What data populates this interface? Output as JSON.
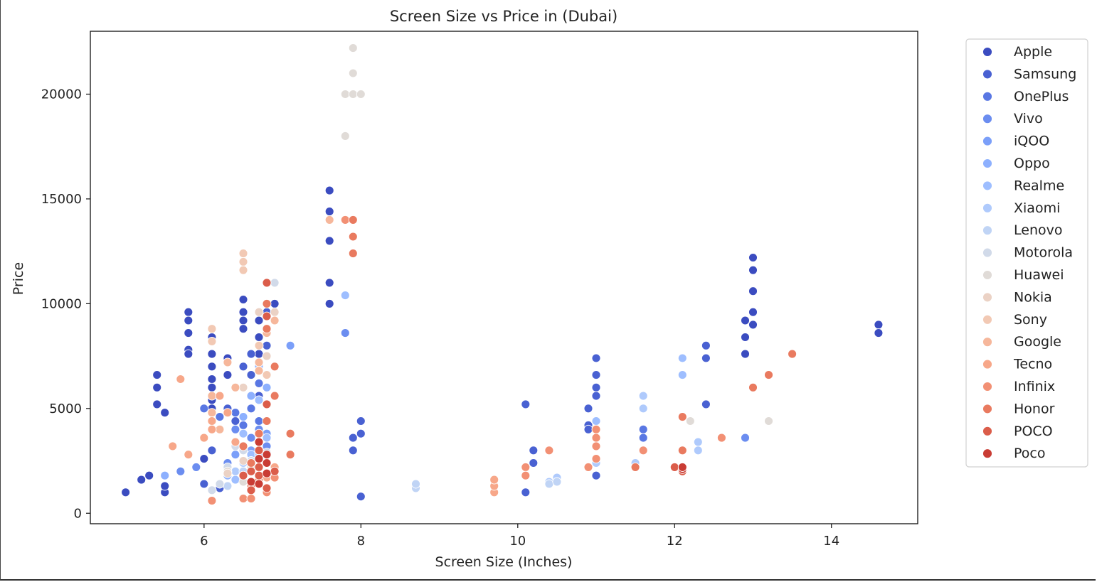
{
  "chart_data": {
    "type": "scatter",
    "title": "Screen Size vs Price in (Dubai)",
    "xlabel": "Screen Size (Inches)",
    "ylabel": "Price",
    "xlim": [
      4.55,
      15.1
    ],
    "ylim": [
      -500,
      23000
    ],
    "xticks": [
      6,
      8,
      10,
      12,
      14
    ],
    "yticks": [
      0,
      5000,
      10000,
      15000,
      20000
    ],
    "grid": false,
    "legend_position": "outside-right",
    "series": [
      {
        "name": "Apple",
        "color": "#3b4cc0",
        "points": [
          [
            5.0,
            1000
          ],
          [
            5.2,
            1600
          ],
          [
            5.3,
            1800
          ],
          [
            5.4,
            6600
          ],
          [
            5.4,
            6000
          ],
          [
            5.4,
            5200
          ],
          [
            5.5,
            4800
          ],
          [
            5.5,
            1000
          ],
          [
            5.5,
            1300
          ],
          [
            5.8,
            9600
          ],
          [
            5.8,
            9200
          ],
          [
            5.8,
            8600
          ],
          [
            5.8,
            7800
          ],
          [
            5.8,
            7600
          ],
          [
            6.0,
            2600
          ],
          [
            6.1,
            8400
          ],
          [
            6.1,
            7600
          ],
          [
            6.1,
            7000
          ],
          [
            6.1,
            6400
          ],
          [
            6.1,
            6000
          ],
          [
            6.1,
            5400
          ],
          [
            6.1,
            5000
          ],
          [
            6.3,
            7400
          ],
          [
            6.3,
            6600
          ],
          [
            6.5,
            10200
          ],
          [
            6.5,
            9600
          ],
          [
            6.5,
            9200
          ],
          [
            6.5,
            8800
          ],
          [
            6.7,
            9200
          ],
          [
            6.7,
            8400
          ],
          [
            6.7,
            7600
          ],
          [
            6.9,
            10000
          ],
          [
            7.6,
            15400
          ],
          [
            7.6,
            14400
          ],
          [
            7.6,
            13000
          ],
          [
            7.6,
            11000
          ],
          [
            7.6,
            10000
          ],
          [
            12.9,
            9200
          ],
          [
            12.9,
            8400
          ],
          [
            12.9,
            7600
          ],
          [
            13.0,
            12200
          ],
          [
            13.0,
            11600
          ],
          [
            13.0,
            10600
          ],
          [
            13.0,
            9600
          ],
          [
            13.0,
            9000
          ],
          [
            14.6,
            9000
          ],
          [
            14.6,
            8600
          ]
        ]
      },
      {
        "name": "Samsung",
        "color": "#4961d2",
        "points": [
          [
            6.0,
            1400
          ],
          [
            6.1,
            3000
          ],
          [
            6.2,
            1200
          ],
          [
            6.3,
            5000
          ],
          [
            6.4,
            4400
          ],
          [
            6.5,
            7000
          ],
          [
            6.6,
            7600
          ],
          [
            6.6,
            6600
          ],
          [
            6.7,
            6800
          ],
          [
            6.7,
            5600
          ],
          [
            6.8,
            9600
          ],
          [
            6.8,
            8000
          ],
          [
            6.9,
            7000
          ],
          [
            7.9,
            3600
          ],
          [
            7.9,
            3000
          ],
          [
            8.0,
            4400
          ],
          [
            8.0,
            3800
          ],
          [
            8.0,
            800
          ],
          [
            10.1,
            5200
          ],
          [
            10.1,
            1000
          ],
          [
            10.2,
            3000
          ],
          [
            10.2,
            2400
          ],
          [
            10.9,
            5000
          ],
          [
            10.9,
            4200
          ],
          [
            10.9,
            4000
          ],
          [
            11.0,
            7400
          ],
          [
            11.0,
            6600
          ],
          [
            11.0,
            6000
          ],
          [
            11.0,
            5600
          ],
          [
            11.0,
            1800
          ],
          [
            12.4,
            8000
          ],
          [
            12.4,
            7400
          ],
          [
            12.4,
            5200
          ]
        ]
      },
      {
        "name": "OnePlus",
        "color": "#5977e3",
        "points": [
          [
            6.0,
            5000
          ],
          [
            6.2,
            4600
          ],
          [
            6.4,
            4800
          ],
          [
            6.5,
            4200
          ],
          [
            6.6,
            5000
          ],
          [
            6.7,
            4400
          ],
          [
            6.7,
            6200
          ],
          [
            6.8,
            5200
          ],
          [
            11.6,
            4000
          ],
          [
            11.6,
            3600
          ]
        ]
      },
      {
        "name": "Vivo",
        "color": "#6b8df0",
        "points": [
          [
            5.7,
            2000
          ],
          [
            5.9,
            2200
          ],
          [
            6.3,
            2400
          ],
          [
            6.4,
            4000
          ],
          [
            6.6,
            3600
          ],
          [
            6.7,
            4000
          ],
          [
            6.8,
            3200
          ],
          [
            7.8,
            8600
          ],
          [
            12.9,
            3600
          ]
        ]
      },
      {
        "name": "iQOO",
        "color": "#7b9ff9",
        "points": [
          [
            6.4,
            2800
          ],
          [
            6.6,
            3000
          ],
          [
            6.7,
            2600
          ],
          [
            6.8,
            3800
          ],
          [
            7.1,
            8000
          ]
        ]
      },
      {
        "name": "Oppo",
        "color": "#8db0fe",
        "points": [
          [
            5.5,
            1800
          ],
          [
            6.3,
            1800
          ],
          [
            6.5,
            4600
          ],
          [
            6.6,
            5600
          ],
          [
            6.7,
            7000
          ],
          [
            6.8,
            6000
          ]
        ]
      },
      {
        "name": "Realme",
        "color": "#9ebeff",
        "points": [
          [
            6.4,
            1600
          ],
          [
            6.5,
            3800
          ],
          [
            6.6,
            2800
          ],
          [
            6.7,
            5400
          ],
          [
            6.8,
            3600
          ],
          [
            7.8,
            10400
          ],
          [
            11.0,
            4400
          ],
          [
            12.1,
            7400
          ],
          [
            12.1,
            6600
          ]
        ]
      },
      {
        "name": "Xiaomi",
        "color": "#afcafc",
        "points": [
          [
            6.1,
            1100
          ],
          [
            6.4,
            2000
          ],
          [
            6.5,
            2400
          ],
          [
            6.7,
            2800
          ],
          [
            10.4,
            1500
          ],
          [
            10.5,
            1700
          ],
          [
            11.0,
            2400
          ],
          [
            11.5,
            2400
          ],
          [
            11.6,
            5600
          ],
          [
            11.6,
            5000
          ],
          [
            12.3,
            3400
          ],
          [
            12.3,
            3000
          ]
        ]
      },
      {
        "name": "Lenovo",
        "color": "#c0d4f5",
        "points": [
          [
            6.3,
            1300
          ],
          [
            6.5,
            2000
          ],
          [
            8.7,
            1200
          ],
          [
            8.7,
            1400
          ],
          [
            10.4,
            1400
          ],
          [
            10.5,
            1500
          ]
        ]
      },
      {
        "name": "Motorola",
        "color": "#d1dae9",
        "points": [
          [
            6.1,
            1100
          ],
          [
            6.2,
            1400
          ],
          [
            6.3,
            2200
          ],
          [
            6.4,
            3200
          ],
          [
            6.5,
            3000
          ],
          [
            6.6,
            2500
          ],
          [
            6.8,
            2900
          ],
          [
            6.9,
            11000
          ]
        ]
      },
      {
        "name": "Huawei",
        "color": "#e0dbd7",
        "points": [
          [
            6.3,
            2000
          ],
          [
            6.5,
            1500
          ],
          [
            6.6,
            2200
          ],
          [
            6.8,
            1800
          ],
          [
            7.8,
            18000
          ],
          [
            7.8,
            20000
          ],
          [
            7.9,
            20000
          ],
          [
            7.9,
            22200
          ],
          [
            7.9,
            21000
          ],
          [
            8.0,
            20000
          ],
          [
            12.2,
            4400
          ],
          [
            13.2,
            4400
          ]
        ]
      },
      {
        "name": "Nokia",
        "color": "#ebd2c5",
        "points": [
          [
            6.3,
            1900
          ],
          [
            6.5,
            2500
          ],
          [
            6.5,
            6000
          ],
          [
            6.7,
            9600
          ],
          [
            6.8,
            7500
          ],
          [
            6.9,
            9600
          ]
        ]
      },
      {
        "name": "Sony",
        "color": "#f2c9b4",
        "points": [
          [
            6.1,
            8800
          ],
          [
            6.1,
            8200
          ],
          [
            6.5,
            12400
          ],
          [
            6.5,
            12000
          ],
          [
            6.5,
            11600
          ],
          [
            6.7,
            8000
          ],
          [
            6.8,
            6600
          ]
        ]
      },
      {
        "name": "Google",
        "color": "#f6b79b",
        "points": [
          [
            6.1,
            5600
          ],
          [
            6.1,
            4800
          ],
          [
            6.2,
            4000
          ],
          [
            6.3,
            7200
          ],
          [
            6.4,
            6000
          ],
          [
            6.7,
            7200
          ],
          [
            6.7,
            6800
          ],
          [
            6.8,
            8600
          ],
          [
            6.9,
            9200
          ],
          [
            7.6,
            14000
          ]
        ]
      },
      {
        "name": "Tecno",
        "color": "#f7a789",
        "points": [
          [
            5.6,
            3200
          ],
          [
            5.7,
            6400
          ],
          [
            5.8,
            2800
          ],
          [
            6.0,
            3600
          ],
          [
            6.1,
            4400
          ],
          [
            6.1,
            4000
          ],
          [
            6.2,
            5600
          ],
          [
            6.3,
            4800
          ],
          [
            6.4,
            3400
          ],
          [
            6.6,
            1500
          ],
          [
            6.8,
            1700
          ],
          [
            6.9,
            2200
          ],
          [
            9.7,
            1000
          ],
          [
            9.7,
            1300
          ],
          [
            9.7,
            1600
          ]
        ]
      },
      {
        "name": "Infinix",
        "color": "#f29074",
        "points": [
          [
            6.1,
            600
          ],
          [
            6.5,
            700
          ],
          [
            6.6,
            700
          ],
          [
            6.6,
            1300
          ],
          [
            6.7,
            1600
          ],
          [
            6.8,
            1000
          ],
          [
            6.9,
            1700
          ],
          [
            7.8,
            14000
          ],
          [
            10.1,
            2200
          ],
          [
            10.1,
            1800
          ],
          [
            10.4,
            3000
          ],
          [
            11.0,
            4000
          ],
          [
            11.0,
            3600
          ],
          [
            11.0,
            3200
          ],
          [
            11.0,
            2600
          ],
          [
            10.9,
            2200
          ],
          [
            11.6,
            3000
          ],
          [
            12.6,
            3600
          ]
        ]
      },
      {
        "name": "Honor",
        "color": "#e97a5f",
        "points": [
          [
            6.5,
            3200
          ],
          [
            6.6,
            2400
          ],
          [
            6.7,
            3800
          ],
          [
            6.8,
            4400
          ],
          [
            6.8,
            8800
          ],
          [
            6.8,
            10000
          ],
          [
            6.9,
            5600
          ],
          [
            6.9,
            7000
          ],
          [
            7.1,
            3800
          ],
          [
            7.1,
            2800
          ],
          [
            7.9,
            14000
          ],
          [
            7.9,
            13200
          ],
          [
            7.9,
            12400
          ],
          [
            11.5,
            2200
          ],
          [
            12.1,
            4600
          ],
          [
            12.1,
            3000
          ],
          [
            13.0,
            6000
          ],
          [
            13.2,
            6600
          ],
          [
            13.5,
            7600
          ]
        ]
      },
      {
        "name": "POCO",
        "color": "#db5d4a",
        "points": [
          [
            6.5,
            1800
          ],
          [
            6.6,
            2000
          ],
          [
            6.6,
            1100
          ],
          [
            6.7,
            3000
          ],
          [
            6.7,
            2200
          ],
          [
            6.7,
            1800
          ],
          [
            6.8,
            1200
          ],
          [
            6.8,
            5200
          ],
          [
            6.8,
            9400
          ],
          [
            6.8,
            11000
          ],
          [
            6.9,
            2000
          ],
          [
            12.0,
            2200
          ],
          [
            12.1,
            2000
          ]
        ]
      },
      {
        "name": "Poco",
        "color": "#c93c34",
        "points": [
          [
            6.6,
            1500
          ],
          [
            6.7,
            1400
          ],
          [
            6.7,
            2600
          ],
          [
            6.7,
            3400
          ],
          [
            6.8,
            1900
          ],
          [
            6.8,
            2400
          ],
          [
            6.8,
            2800
          ],
          [
            12.1,
            2100
          ],
          [
            12.1,
            2200
          ]
        ]
      }
    ]
  }
}
